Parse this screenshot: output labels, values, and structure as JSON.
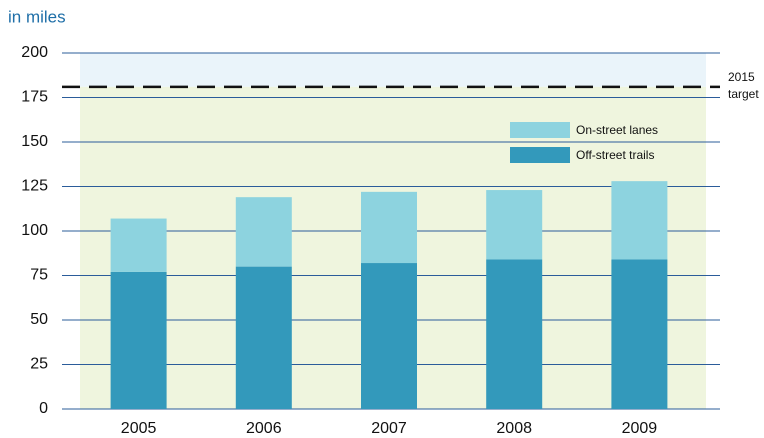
{
  "chart_data": {
    "type": "stacked_bar",
    "title": "in miles",
    "categories": [
      "2005",
      "2006",
      "2007",
      "2008",
      "2009"
    ],
    "series": [
      {
        "name": "Off-street trails",
        "color": "#3399bb",
        "values": [
          77,
          80,
          82,
          84,
          84
        ]
      },
      {
        "name": "On-street lanes",
        "color": "#8dd3df",
        "values": [
          30,
          39,
          40,
          39,
          44
        ]
      }
    ],
    "ylim": [
      0,
      200
    ],
    "yticks": [
      0,
      25,
      50,
      75,
      100,
      125,
      150,
      175,
      200
    ],
    "grid": true,
    "target": {
      "value": 181,
      "label": [
        "2015",
        "target"
      ]
    },
    "legend": "upper right"
  }
}
